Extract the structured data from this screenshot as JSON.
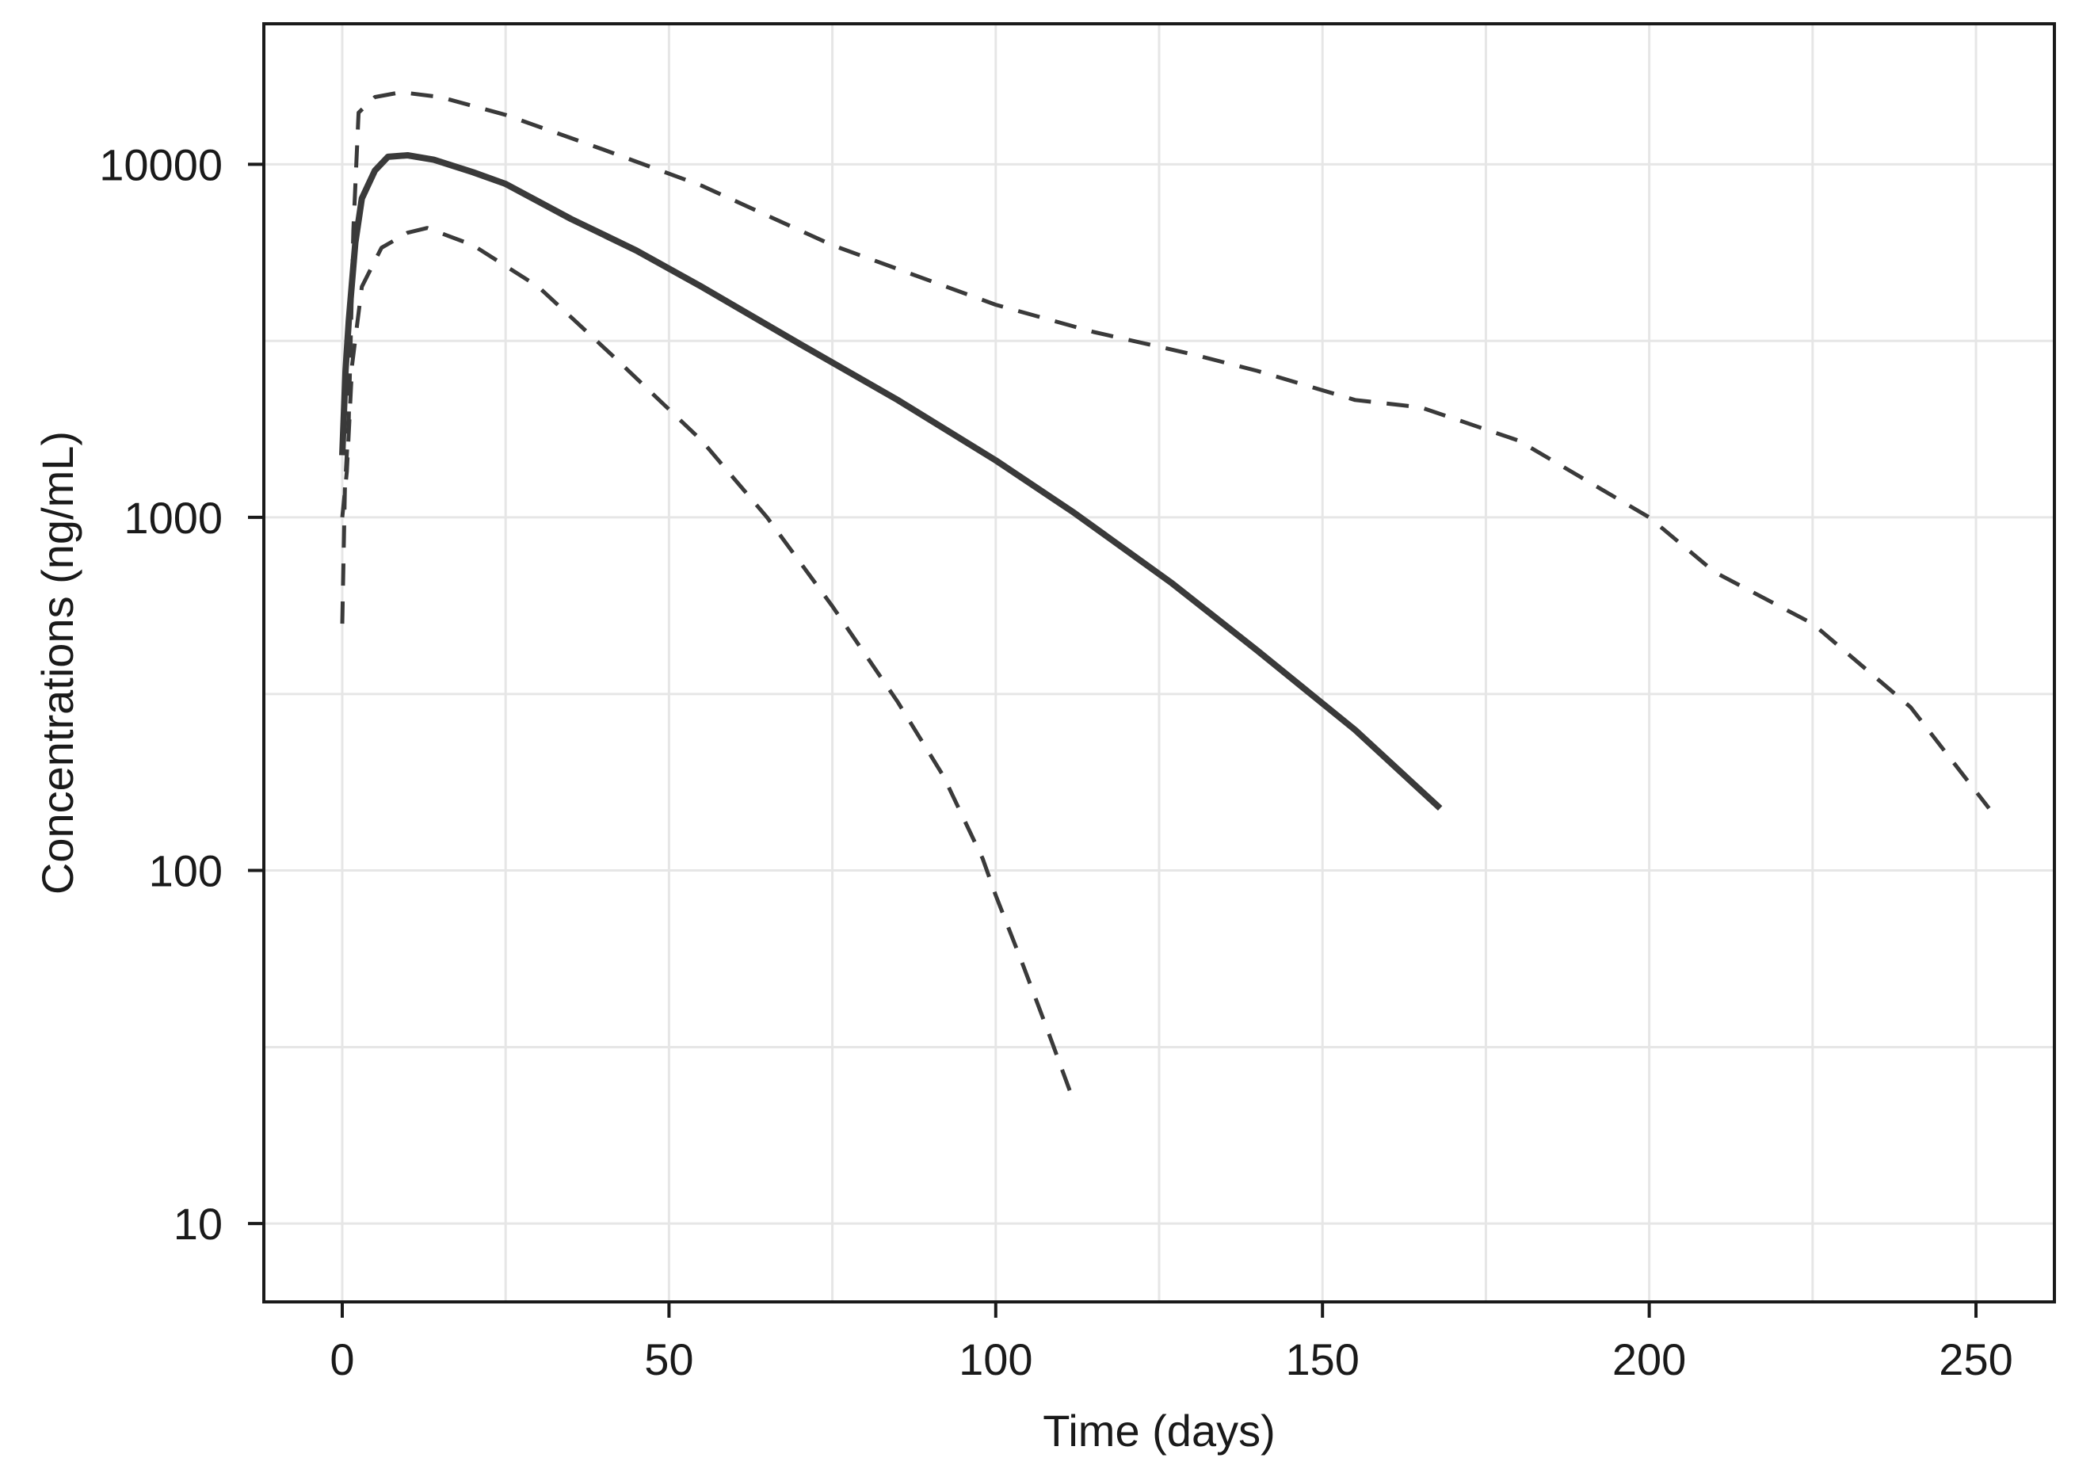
{
  "chart_data": {
    "type": "line",
    "title": "",
    "xlabel": "Time (days)",
    "ylabel": "Concentrations (ng/mL)",
    "xlim": [
      -12,
      262
    ],
    "ylim": [
      6,
      25000
    ],
    "y_scale": "log",
    "x_ticks": [
      0,
      50,
      100,
      150,
      200,
      250
    ],
    "x_tick_labels": [
      "0",
      "50",
      "100",
      "150",
      "200",
      "250"
    ],
    "y_ticks": [
      10,
      100,
      1000,
      10000
    ],
    "y_tick_labels": [
      "10",
      "100",
      "1000",
      "10000"
    ],
    "x_minor_grid": [
      25,
      75,
      125,
      175,
      225
    ],
    "y_minor_grid": [
      31.6,
      316,
      3160
    ],
    "grid": true,
    "legend": "none",
    "series": [
      {
        "line_style": "solid",
        "color": "#3a3a3a",
        "points": [
          [
            0,
            1500
          ],
          [
            0.5,
            2600
          ],
          [
            1,
            3600
          ],
          [
            2,
            6000
          ],
          [
            3,
            8000
          ],
          [
            5,
            9600
          ],
          [
            7,
            10500
          ],
          [
            10,
            10600
          ],
          [
            14,
            10300
          ],
          [
            20,
            9500
          ],
          [
            25,
            8800
          ],
          [
            35,
            7000
          ],
          [
            45,
            5700
          ],
          [
            55,
            4500
          ],
          [
            70,
            3100
          ],
          [
            85,
            2150
          ],
          [
            100,
            1450
          ],
          [
            112,
            1030
          ],
          [
            127,
            650
          ],
          [
            140,
            420
          ],
          [
            155,
            250
          ],
          [
            168,
            150
          ]
        ]
      },
      {
        "line_style": "dashed",
        "color": "#3a3a3a",
        "points": [
          [
            0,
            500
          ],
          [
            0.4,
            1200
          ],
          [
            1,
            1900
          ],
          [
            1.7,
            6500
          ],
          [
            2.5,
            14000
          ],
          [
            5,
            15500
          ],
          [
            9,
            16000
          ],
          [
            15,
            15500
          ],
          [
            25,
            13800
          ],
          [
            40,
            11000
          ],
          [
            55,
            8700
          ],
          [
            75,
            5900
          ],
          [
            100,
            4000
          ],
          [
            115,
            3350
          ],
          [
            130,
            2900
          ],
          [
            140,
            2600
          ],
          [
            155,
            2150
          ],
          [
            165,
            2050
          ],
          [
            180,
            1650
          ],
          [
            200,
            1000
          ],
          [
            210,
            700
          ],
          [
            225,
            500
          ],
          [
            240,
            290
          ],
          [
            252,
            150
          ]
        ]
      },
      {
        "line_style": "dashed",
        "color": "#3a3a3a",
        "points": [
          [
            0,
            1000
          ],
          [
            0.7,
            1350
          ],
          [
            1.5,
            2700
          ],
          [
            3,
            4500
          ],
          [
            6,
            5800
          ],
          [
            10,
            6400
          ],
          [
            13,
            6600
          ],
          [
            20,
            5900
          ],
          [
            30,
            4500
          ],
          [
            42,
            2800
          ],
          [
            55,
            1650
          ],
          [
            65,
            1000
          ],
          [
            75,
            560
          ],
          [
            85,
            300
          ],
          [
            92,
            185
          ],
          [
            98,
            108
          ],
          [
            100,
            85
          ],
          [
            104,
            55
          ],
          [
            108,
            35
          ],
          [
            112,
            22
          ]
        ]
      }
    ]
  }
}
